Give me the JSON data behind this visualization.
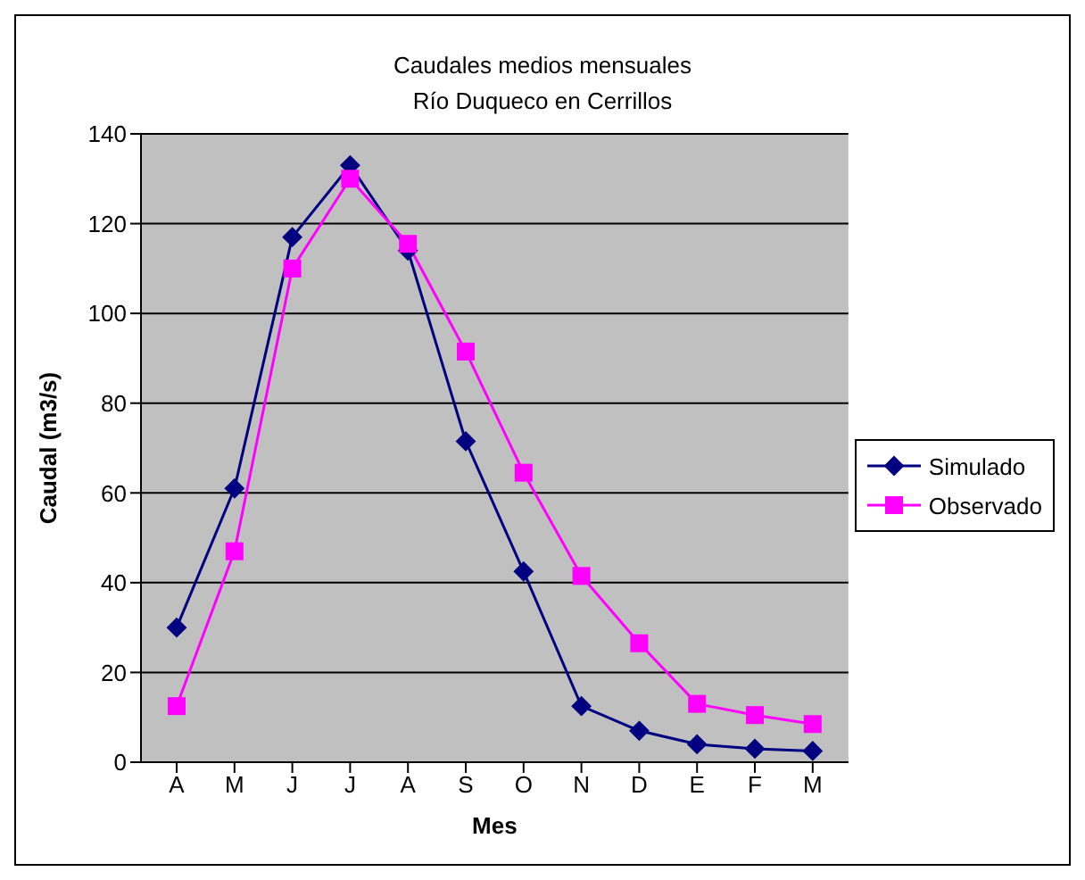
{
  "chart_data": {
    "type": "line",
    "title": "Caudales medios mensuales",
    "subtitle": "Río Duqueco en Cerrillos",
    "xlabel": "Mes",
    "ylabel": "Caudal (m3/s)",
    "categories": [
      "A",
      "M",
      "J",
      "J",
      "A",
      "S",
      "O",
      "N",
      "D",
      "E",
      "F",
      "M"
    ],
    "series": [
      {
        "name": "Simulado",
        "color": "#000080",
        "marker": "diamond",
        "values": [
          30,
          61,
          117,
          133,
          114,
          71.5,
          42.5,
          12.5,
          7,
          4,
          3,
          2.5
        ]
      },
      {
        "name": "Observado",
        "color": "#ff00ff",
        "marker": "square",
        "values": [
          12.5,
          47,
          110,
          130,
          115.5,
          91.5,
          64.5,
          41.5,
          26.5,
          13,
          10.5,
          8.5
        ]
      }
    ],
    "ylim": [
      0,
      140
    ],
    "yticks": [
      0,
      20,
      40,
      60,
      80,
      100,
      120,
      140
    ],
    "grid": "y",
    "legend": "right"
  }
}
